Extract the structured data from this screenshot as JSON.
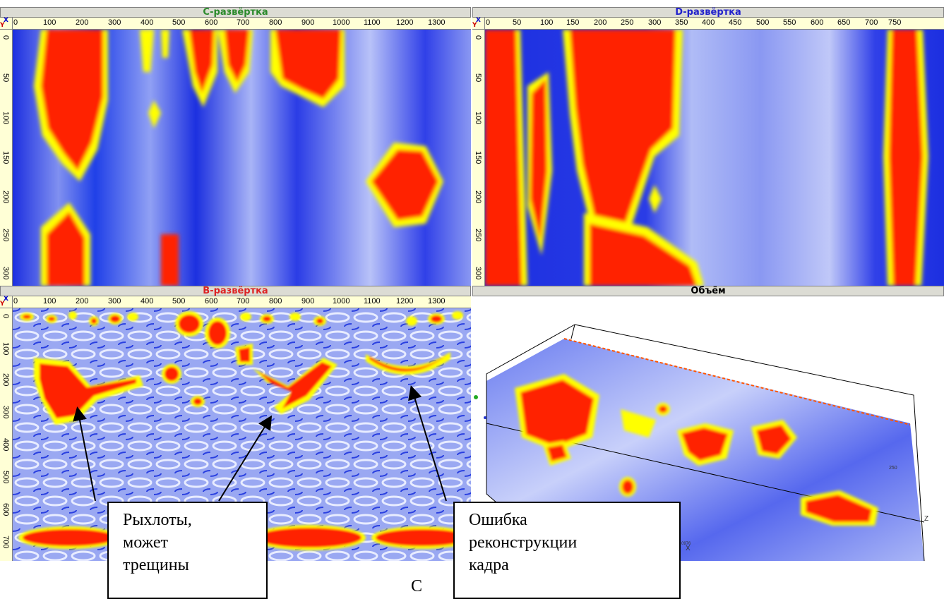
{
  "panels": {
    "c_scan": {
      "title": "C-развёртка",
      "title_color": "#2a8a2a",
      "x_ticks": [
        "0",
        "100",
        "200",
        "300",
        "400",
        "500",
        "600",
        "700",
        "800",
        "900",
        "1000",
        "1100",
        "1200",
        "1300"
      ],
      "y_ticks": [
        "0",
        "50",
        "100",
        "150",
        "200",
        "250",
        "300"
      ]
    },
    "d_scan": {
      "title": "D-развёртка",
      "title_color": "#2222cc",
      "x_ticks": [
        "0",
        "50",
        "100",
        "150",
        "200",
        "250",
        "300",
        "350",
        "400",
        "450",
        "500",
        "550",
        "600",
        "650",
        "700",
        "750"
      ],
      "y_ticks": [
        "0",
        "50",
        "100",
        "150",
        "200",
        "250",
        "300"
      ]
    },
    "b_scan": {
      "title": "B-развёртка",
      "title_color": "#dd2222",
      "x_ticks": [
        "0",
        "100",
        "200",
        "300",
        "400",
        "500",
        "600",
        "700",
        "800",
        "900",
        "1000",
        "1100",
        "1200",
        "1300"
      ],
      "y_ticks": [
        "0",
        "100",
        "200",
        "300",
        "400",
        "500",
        "600",
        "700"
      ]
    },
    "volume": {
      "title": "Объём",
      "title_color": "#000000",
      "axis_x": "X",
      "axis_z": "Z",
      "axis_y_small": "250",
      "axis_x_small": "0976"
    }
  },
  "corner": {
    "x": "X",
    "y": "Y"
  },
  "annotations": {
    "note1": {
      "line1": "Рыхлоты,",
      "line2": "может",
      "line3": "трещины"
    },
    "note2": {
      "line1": "Ошибка",
      "line2": "реконструкции",
      "line3": "кадра"
    }
  },
  "caption": "С",
  "colors": {
    "blue": "#1c2fe0",
    "light_blue": "#c8d0f8",
    "red": "#ff1a00",
    "yellow": "#ffff00",
    "ruler_bg": "#ffffd6",
    "title_bg": "#dcdcd4"
  }
}
